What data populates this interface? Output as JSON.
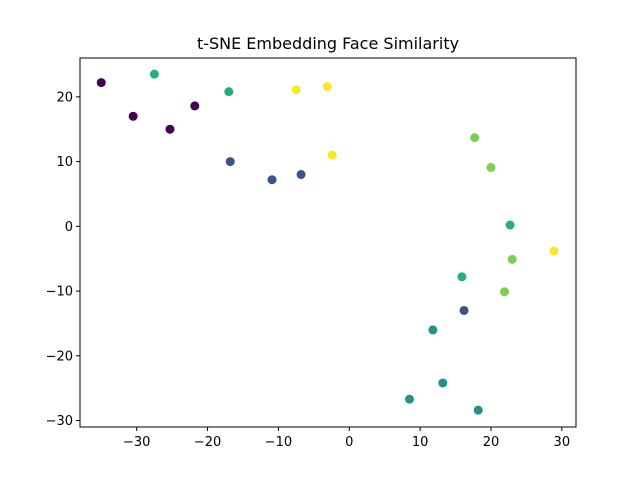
{
  "chart_data": {
    "type": "scatter",
    "title": "t-SNE Embedding Face Similarity",
    "xlabel": "",
    "ylabel": "",
    "xlim": [
      -38,
      32
    ],
    "ylim": [
      -31,
      26
    ],
    "xticks": [
      -30,
      -20,
      -10,
      0,
      10,
      20,
      30
    ],
    "yticks": [
      -30,
      -20,
      -10,
      0,
      10,
      20
    ],
    "xtick_labels": [
      "−30",
      "−20",
      "−10",
      "0",
      "10",
      "20",
      "30"
    ],
    "ytick_labels": [
      "−30",
      "−20",
      "−10",
      "0",
      "10",
      "20"
    ],
    "grid": false,
    "legend": false,
    "series": [
      {
        "color": "#440154",
        "points": [
          [
            -35.0,
            22.2
          ],
          [
            -30.5,
            17.0
          ],
          [
            -25.3,
            15.0
          ],
          [
            -21.8,
            18.6
          ]
        ]
      },
      {
        "color": "#3b528b",
        "points": [
          [
            -16.8,
            10.0
          ],
          [
            -10.9,
            7.2
          ],
          [
            -6.8,
            8.0
          ],
          [
            16.2,
            -13.0
          ]
        ]
      },
      {
        "color": "#21918c",
        "points": [
          [
            11.8,
            -16.0
          ],
          [
            13.2,
            -24.2
          ],
          [
            8.5,
            -26.7
          ],
          [
            18.2,
            -28.4
          ]
        ]
      },
      {
        "color": "#26ad81",
        "points": [
          [
            -27.5,
            23.5
          ],
          [
            -17.0,
            20.8
          ],
          [
            22.7,
            0.2
          ],
          [
            15.9,
            -7.8
          ]
        ]
      },
      {
        "color": "#7ad151",
        "points": [
          [
            17.7,
            13.7
          ],
          [
            20.0,
            9.1
          ],
          [
            23.0,
            -5.1
          ],
          [
            21.9,
            -10.1
          ]
        ]
      },
      {
        "color": "#fde725",
        "points": [
          [
            -7.5,
            21.1
          ],
          [
            -3.1,
            21.6
          ],
          [
            -2.4,
            11.0
          ],
          [
            28.9,
            -3.8
          ]
        ]
      }
    ]
  }
}
